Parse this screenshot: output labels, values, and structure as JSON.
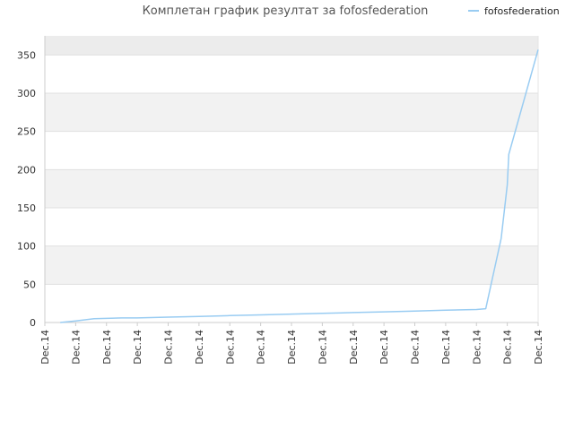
{
  "chart_data": {
    "type": "line",
    "title": "Комплетан график резултат за fofosfederation",
    "xlabel": "",
    "ylabel": "",
    "ylim": [
      0,
      375
    ],
    "yticks": [
      0,
      50,
      100,
      150,
      200,
      250,
      300,
      350
    ],
    "grid": true,
    "grid_style": "alternating horizontal bands",
    "legend_position": "top-right",
    "x_tick_labels": [
      "Dec.14",
      "Dec.14",
      "Dec.14",
      "Dec.14",
      "Dec.14",
      "Dec.14",
      "Dec.14",
      "Dec.14",
      "Dec.14",
      "Dec.14",
      "Dec.14",
      "Dec.14",
      "Dec.14",
      "Dec.14",
      "Dec.14",
      "Dec.14",
      "Dec.14"
    ],
    "series": [
      {
        "name": "fofosfederation",
        "color": "#99ccf2",
        "x": [
          0.5,
          1,
          1.6,
          2.5,
          3,
          4,
          5,
          6,
          7,
          8,
          9,
          10,
          11,
          12,
          13,
          14,
          14.3,
          14.8,
          15.0,
          15.05,
          16.0
        ],
        "y": [
          0,
          2,
          5,
          6,
          6,
          7,
          8,
          9,
          10,
          11,
          12,
          13,
          14,
          15,
          16,
          17,
          18,
          110,
          180,
          220,
          357
        ]
      }
    ]
  }
}
